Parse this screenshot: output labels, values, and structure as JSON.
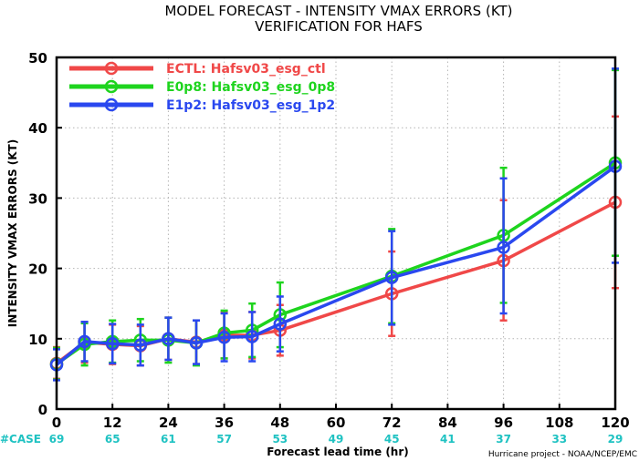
{
  "chart_data": {
    "type": "line",
    "title": "MODEL FORECAST - INTENSITY VMAX ERRORS (KT)",
    "subtitle": "VERIFICATION FOR HAFS",
    "xlabel": "Forecast lead time (hr)",
    "ylabel": "INTENSITY VMAX ERRORS (KT)",
    "xlim": [
      0,
      120
    ],
    "ylim": [
      0,
      50
    ],
    "xticks": [
      0,
      12,
      24,
      36,
      48,
      60,
      72,
      84,
      96,
      108,
      120
    ],
    "yticks": [
      0,
      10,
      20,
      30,
      40,
      50
    ],
    "grid": true,
    "legend_position": "top-left",
    "case_label": "#CASE",
    "cases": [
      {
        "x": 0,
        "n": "69"
      },
      {
        "x": 12,
        "n": "65"
      },
      {
        "x": 24,
        "n": "61"
      },
      {
        "x": 36,
        "n": "57"
      },
      {
        "x": 48,
        "n": "53"
      },
      {
        "x": 60,
        "n": "49"
      },
      {
        "x": 72,
        "n": "45"
      },
      {
        "x": 84,
        "n": "41"
      },
      {
        "x": 96,
        "n": "37"
      },
      {
        "x": 108,
        "n": "33"
      },
      {
        "x": 120,
        "n": "29"
      }
    ],
    "series": [
      {
        "name": "ECTL: Hafsv03_esg_ctl",
        "color": "#f04848",
        "x": [
          0,
          6,
          12,
          18,
          24,
          30,
          36,
          42,
          48,
          72,
          96,
          120
        ],
        "y": [
          6.5,
          9.5,
          9.2,
          9.0,
          10.0,
          9.5,
          10.5,
          10.5,
          11.2,
          16.4,
          21.1,
          29.4
        ],
        "err_low": [
          4.3,
          6.6,
          6.4,
          6.2,
          7.0,
          6.4,
          7.2,
          7.2,
          7.6,
          10.4,
          12.6,
          17.2
        ],
        "err_high": [
          8.8,
          12.4,
          12.0,
          11.8,
          13.0,
          12.6,
          13.8,
          13.8,
          14.8,
          22.4,
          29.7,
          41.6
        ]
      },
      {
        "name": "E0p8: Hafsv03_esg_0p8",
        "color": "#1ed41e",
        "x": [
          0,
          6,
          12,
          18,
          24,
          30,
          36,
          42,
          48,
          72,
          96,
          120
        ],
        "y": [
          6.4,
          9.2,
          9.6,
          9.8,
          9.8,
          9.4,
          10.8,
          11.2,
          13.4,
          18.9,
          24.7,
          35.0
        ],
        "err_low": [
          4.2,
          6.2,
          6.6,
          6.8,
          6.6,
          6.2,
          7.2,
          7.4,
          8.8,
          12.2,
          15.1,
          21.8
        ],
        "err_high": [
          8.7,
          12.2,
          12.6,
          12.8,
          13.0,
          12.6,
          14.0,
          15.0,
          18.0,
          25.6,
          34.3,
          48.2
        ]
      },
      {
        "name": "E1p2: Hafsv03_esg_1p2",
        "color": "#2a48ef",
        "x": [
          0,
          6,
          12,
          18,
          24,
          30,
          36,
          42,
          48,
          72,
          96,
          120
        ],
        "y": [
          6.3,
          9.6,
          9.3,
          9.1,
          10.0,
          9.4,
          10.2,
          10.3,
          12.1,
          18.7,
          23.0,
          34.5
        ],
        "err_low": [
          4.1,
          6.8,
          6.5,
          6.2,
          7.0,
          6.4,
          6.8,
          6.8,
          8.2,
          12.0,
          13.6,
          20.8
        ],
        "err_high": [
          8.5,
          12.4,
          12.1,
          12.0,
          13.0,
          12.6,
          13.6,
          13.8,
          16.0,
          25.3,
          32.8,
          48.4
        ]
      }
    ],
    "credit": "Hurricane project - NOAA/NCEP/EMC"
  }
}
